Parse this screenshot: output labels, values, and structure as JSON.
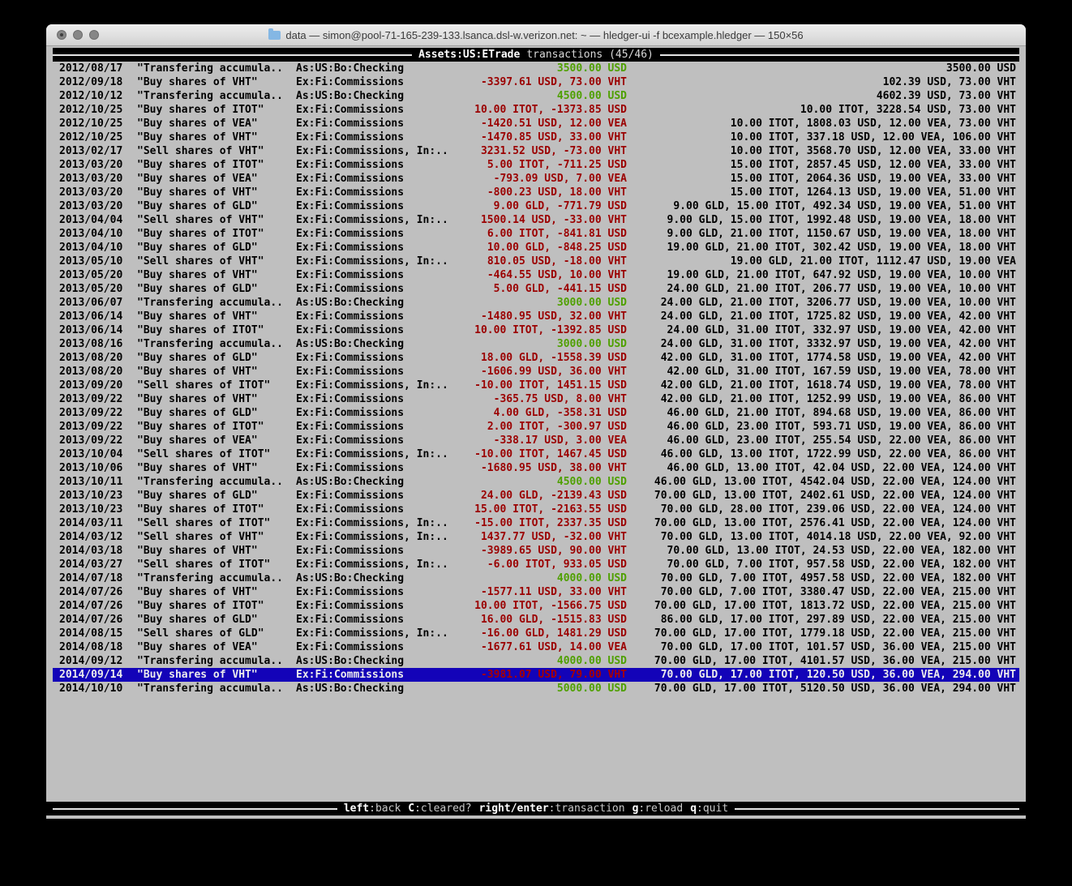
{
  "window": {
    "title": "data — simon@pool-71-165-239-133.lsanca.dsl-w.verizon.net: ~ — hledger-ui -f bcexample.hledger — 150×56"
  },
  "header": {
    "account": "Assets:US:ETrade",
    "suffix": "transactions (45/46)"
  },
  "footer": {
    "hints": [
      {
        "key": "left",
        "desc": ":back"
      },
      {
        "key": "C",
        "desc": ":cleared?"
      },
      {
        "key": "right/enter",
        "desc": ":transaction"
      },
      {
        "key": "g",
        "desc": ":reload"
      },
      {
        "key": "q",
        "desc": ":quit"
      }
    ]
  },
  "colors": {
    "terminal_bg": "#bfbfbf",
    "bar_bg": "#000000",
    "amount_negative": "#9b0000",
    "amount_positive": "#4fa000",
    "selection_bg": "#1303b8",
    "selection_fg": "#ececec"
  },
  "register": {
    "selected_index": 44,
    "rows": [
      {
        "date": "2012/08/17",
        "desc": "\"Transfering accumula..",
        "acct": "As:US:Bo:Checking",
        "amt": "3500.00 USD",
        "amt_color": "green",
        "bal": "3500.00 USD"
      },
      {
        "date": "2012/09/18",
        "desc": "\"Buy shares of VHT\"",
        "acct": "Ex:Fi:Commissions",
        "amt": "-3397.61 USD, 73.00 VHT",
        "amt_color": "red",
        "bal": "102.39 USD, 73.00 VHT"
      },
      {
        "date": "2012/10/12",
        "desc": "\"Transfering accumula..",
        "acct": "As:US:Bo:Checking",
        "amt": "4500.00 USD",
        "amt_color": "green",
        "bal": "4602.39 USD, 73.00 VHT"
      },
      {
        "date": "2012/10/25",
        "desc": "\"Buy shares of ITOT\"",
        "acct": "Ex:Fi:Commissions",
        "amt": "10.00 ITOT, -1373.85 USD",
        "amt_color": "red",
        "bal": "10.00 ITOT, 3228.54 USD, 73.00 VHT"
      },
      {
        "date": "2012/10/25",
        "desc": "\"Buy shares of VEA\"",
        "acct": "Ex:Fi:Commissions",
        "amt": "-1420.51 USD, 12.00 VEA",
        "amt_color": "red",
        "bal": "10.00 ITOT, 1808.03 USD, 12.00 VEA, 73.00 VHT"
      },
      {
        "date": "2012/10/25",
        "desc": "\"Buy shares of VHT\"",
        "acct": "Ex:Fi:Commissions",
        "amt": "-1470.85 USD, 33.00 VHT",
        "amt_color": "red",
        "bal": "10.00 ITOT, 337.18 USD, 12.00 VEA, 106.00 VHT"
      },
      {
        "date": "2013/02/17",
        "desc": "\"Sell shares of VHT\"",
        "acct": "Ex:Fi:Commissions, In:..",
        "amt": "3231.52 USD, -73.00 VHT",
        "amt_color": "red",
        "bal": "10.00 ITOT, 3568.70 USD, 12.00 VEA, 33.00 VHT"
      },
      {
        "date": "2013/03/20",
        "desc": "\"Buy shares of ITOT\"",
        "acct": "Ex:Fi:Commissions",
        "amt": "5.00 ITOT, -711.25 USD",
        "amt_color": "red",
        "bal": "15.00 ITOT, 2857.45 USD, 12.00 VEA, 33.00 VHT"
      },
      {
        "date": "2013/03/20",
        "desc": "\"Buy shares of VEA\"",
        "acct": "Ex:Fi:Commissions",
        "amt": "-793.09 USD, 7.00 VEA",
        "amt_color": "red",
        "bal": "15.00 ITOT, 2064.36 USD, 19.00 VEA, 33.00 VHT"
      },
      {
        "date": "2013/03/20",
        "desc": "\"Buy shares of VHT\"",
        "acct": "Ex:Fi:Commissions",
        "amt": "-800.23 USD, 18.00 VHT",
        "amt_color": "red",
        "bal": "15.00 ITOT, 1264.13 USD, 19.00 VEA, 51.00 VHT"
      },
      {
        "date": "2013/03/20",
        "desc": "\"Buy shares of GLD\"",
        "acct": "Ex:Fi:Commissions",
        "amt": "9.00 GLD, -771.79 USD",
        "amt_color": "red",
        "bal": "9.00 GLD, 15.00 ITOT, 492.34 USD, 19.00 VEA, 51.00 VHT"
      },
      {
        "date": "2013/04/04",
        "desc": "\"Sell shares of VHT\"",
        "acct": "Ex:Fi:Commissions, In:..",
        "amt": "1500.14 USD, -33.00 VHT",
        "amt_color": "red",
        "bal": "9.00 GLD, 15.00 ITOT, 1992.48 USD, 19.00 VEA, 18.00 VHT"
      },
      {
        "date": "2013/04/10",
        "desc": "\"Buy shares of ITOT\"",
        "acct": "Ex:Fi:Commissions",
        "amt": "6.00 ITOT, -841.81 USD",
        "amt_color": "red",
        "bal": "9.00 GLD, 21.00 ITOT, 1150.67 USD, 19.00 VEA, 18.00 VHT"
      },
      {
        "date": "2013/04/10",
        "desc": "\"Buy shares of GLD\"",
        "acct": "Ex:Fi:Commissions",
        "amt": "10.00 GLD, -848.25 USD",
        "amt_color": "red",
        "bal": "19.00 GLD, 21.00 ITOT, 302.42 USD, 19.00 VEA, 18.00 VHT"
      },
      {
        "date": "2013/05/10",
        "desc": "\"Sell shares of VHT\"",
        "acct": "Ex:Fi:Commissions, In:..",
        "amt": "810.05 USD, -18.00 VHT",
        "amt_color": "red",
        "bal": "19.00 GLD, 21.00 ITOT, 1112.47 USD, 19.00 VEA"
      },
      {
        "date": "2013/05/20",
        "desc": "\"Buy shares of VHT\"",
        "acct": "Ex:Fi:Commissions",
        "amt": "-464.55 USD, 10.00 VHT",
        "amt_color": "red",
        "bal": "19.00 GLD, 21.00 ITOT, 647.92 USD, 19.00 VEA, 10.00 VHT"
      },
      {
        "date": "2013/05/20",
        "desc": "\"Buy shares of GLD\"",
        "acct": "Ex:Fi:Commissions",
        "amt": "5.00 GLD, -441.15 USD",
        "amt_color": "red",
        "bal": "24.00 GLD, 21.00 ITOT, 206.77 USD, 19.00 VEA, 10.00 VHT"
      },
      {
        "date": "2013/06/07",
        "desc": "\"Transfering accumula..",
        "acct": "As:US:Bo:Checking",
        "amt": "3000.00 USD",
        "amt_color": "green",
        "bal": "24.00 GLD, 21.00 ITOT, 3206.77 USD, 19.00 VEA, 10.00 VHT"
      },
      {
        "date": "2013/06/14",
        "desc": "\"Buy shares of VHT\"",
        "acct": "Ex:Fi:Commissions",
        "amt": "-1480.95 USD, 32.00 VHT",
        "amt_color": "red",
        "bal": "24.00 GLD, 21.00 ITOT, 1725.82 USD, 19.00 VEA, 42.00 VHT"
      },
      {
        "date": "2013/06/14",
        "desc": "\"Buy shares of ITOT\"",
        "acct": "Ex:Fi:Commissions",
        "amt": "10.00 ITOT, -1392.85 USD",
        "amt_color": "red",
        "bal": "24.00 GLD, 31.00 ITOT, 332.97 USD, 19.00 VEA, 42.00 VHT"
      },
      {
        "date": "2013/08/16",
        "desc": "\"Transfering accumula..",
        "acct": "As:US:Bo:Checking",
        "amt": "3000.00 USD",
        "amt_color": "green",
        "bal": "24.00 GLD, 31.00 ITOT, 3332.97 USD, 19.00 VEA, 42.00 VHT"
      },
      {
        "date": "2013/08/20",
        "desc": "\"Buy shares of GLD\"",
        "acct": "Ex:Fi:Commissions",
        "amt": "18.00 GLD, -1558.39 USD",
        "amt_color": "red",
        "bal": "42.00 GLD, 31.00 ITOT, 1774.58 USD, 19.00 VEA, 42.00 VHT"
      },
      {
        "date": "2013/08/20",
        "desc": "\"Buy shares of VHT\"",
        "acct": "Ex:Fi:Commissions",
        "amt": "-1606.99 USD, 36.00 VHT",
        "amt_color": "red",
        "bal": "42.00 GLD, 31.00 ITOT, 167.59 USD, 19.00 VEA, 78.00 VHT"
      },
      {
        "date": "2013/09/20",
        "desc": "\"Sell shares of ITOT\"",
        "acct": "Ex:Fi:Commissions, In:..",
        "amt": "-10.00 ITOT, 1451.15 USD",
        "amt_color": "red",
        "bal": "42.00 GLD, 21.00 ITOT, 1618.74 USD, 19.00 VEA, 78.00 VHT"
      },
      {
        "date": "2013/09/22",
        "desc": "\"Buy shares of VHT\"",
        "acct": "Ex:Fi:Commissions",
        "amt": "-365.75 USD, 8.00 VHT",
        "amt_color": "red",
        "bal": "42.00 GLD, 21.00 ITOT, 1252.99 USD, 19.00 VEA, 86.00 VHT"
      },
      {
        "date": "2013/09/22",
        "desc": "\"Buy shares of GLD\"",
        "acct": "Ex:Fi:Commissions",
        "amt": "4.00 GLD, -358.31 USD",
        "amt_color": "red",
        "bal": "46.00 GLD, 21.00 ITOT, 894.68 USD, 19.00 VEA, 86.00 VHT"
      },
      {
        "date": "2013/09/22",
        "desc": "\"Buy shares of ITOT\"",
        "acct": "Ex:Fi:Commissions",
        "amt": "2.00 ITOT, -300.97 USD",
        "amt_color": "red",
        "bal": "46.00 GLD, 23.00 ITOT, 593.71 USD, 19.00 VEA, 86.00 VHT"
      },
      {
        "date": "2013/09/22",
        "desc": "\"Buy shares of VEA\"",
        "acct": "Ex:Fi:Commissions",
        "amt": "-338.17 USD, 3.00 VEA",
        "amt_color": "red",
        "bal": "46.00 GLD, 23.00 ITOT, 255.54 USD, 22.00 VEA, 86.00 VHT"
      },
      {
        "date": "2013/10/04",
        "desc": "\"Sell shares of ITOT\"",
        "acct": "Ex:Fi:Commissions, In:..",
        "amt": "-10.00 ITOT, 1467.45 USD",
        "amt_color": "red",
        "bal": "46.00 GLD, 13.00 ITOT, 1722.99 USD, 22.00 VEA, 86.00 VHT"
      },
      {
        "date": "2013/10/06",
        "desc": "\"Buy shares of VHT\"",
        "acct": "Ex:Fi:Commissions",
        "amt": "-1680.95 USD, 38.00 VHT",
        "amt_color": "red",
        "bal": "46.00 GLD, 13.00 ITOT, 42.04 USD, 22.00 VEA, 124.00 VHT"
      },
      {
        "date": "2013/10/11",
        "desc": "\"Transfering accumula..",
        "acct": "As:US:Bo:Checking",
        "amt": "4500.00 USD",
        "amt_color": "green",
        "bal": "46.00 GLD, 13.00 ITOT, 4542.04 USD, 22.00 VEA, 124.00 VHT"
      },
      {
        "date": "2013/10/23",
        "desc": "\"Buy shares of GLD\"",
        "acct": "Ex:Fi:Commissions",
        "amt": "24.00 GLD, -2139.43 USD",
        "amt_color": "red",
        "bal": "70.00 GLD, 13.00 ITOT, 2402.61 USD, 22.00 VEA, 124.00 VHT"
      },
      {
        "date": "2013/10/23",
        "desc": "\"Buy shares of ITOT\"",
        "acct": "Ex:Fi:Commissions",
        "amt": "15.00 ITOT, -2163.55 USD",
        "amt_color": "red",
        "bal": "70.00 GLD, 28.00 ITOT, 239.06 USD, 22.00 VEA, 124.00 VHT"
      },
      {
        "date": "2014/03/11",
        "desc": "\"Sell shares of ITOT\"",
        "acct": "Ex:Fi:Commissions, In:..",
        "amt": "-15.00 ITOT, 2337.35 USD",
        "amt_color": "red",
        "bal": "70.00 GLD, 13.00 ITOT, 2576.41 USD, 22.00 VEA, 124.00 VHT"
      },
      {
        "date": "2014/03/12",
        "desc": "\"Sell shares of VHT\"",
        "acct": "Ex:Fi:Commissions, In:..",
        "amt": "1437.77 USD, -32.00 VHT",
        "amt_color": "red",
        "bal": "70.00 GLD, 13.00 ITOT, 4014.18 USD, 22.00 VEA, 92.00 VHT"
      },
      {
        "date": "2014/03/18",
        "desc": "\"Buy shares of VHT\"",
        "acct": "Ex:Fi:Commissions",
        "amt": "-3989.65 USD, 90.00 VHT",
        "amt_color": "red",
        "bal": "70.00 GLD, 13.00 ITOT, 24.53 USD, 22.00 VEA, 182.00 VHT"
      },
      {
        "date": "2014/03/27",
        "desc": "\"Sell shares of ITOT\"",
        "acct": "Ex:Fi:Commissions, In:..",
        "amt": "-6.00 ITOT, 933.05 USD",
        "amt_color": "red",
        "bal": "70.00 GLD, 7.00 ITOT, 957.58 USD, 22.00 VEA, 182.00 VHT"
      },
      {
        "date": "2014/07/18",
        "desc": "\"Transfering accumula..",
        "acct": "As:US:Bo:Checking",
        "amt": "4000.00 USD",
        "amt_color": "green",
        "bal": "70.00 GLD, 7.00 ITOT, 4957.58 USD, 22.00 VEA, 182.00 VHT"
      },
      {
        "date": "2014/07/26",
        "desc": "\"Buy shares of VHT\"",
        "acct": "Ex:Fi:Commissions",
        "amt": "-1577.11 USD, 33.00 VHT",
        "amt_color": "red",
        "bal": "70.00 GLD, 7.00 ITOT, 3380.47 USD, 22.00 VEA, 215.00 VHT"
      },
      {
        "date": "2014/07/26",
        "desc": "\"Buy shares of ITOT\"",
        "acct": "Ex:Fi:Commissions",
        "amt": "10.00 ITOT, -1566.75 USD",
        "amt_color": "red",
        "bal": "70.00 GLD, 17.00 ITOT, 1813.72 USD, 22.00 VEA, 215.00 VHT"
      },
      {
        "date": "2014/07/26",
        "desc": "\"Buy shares of GLD\"",
        "acct": "Ex:Fi:Commissions",
        "amt": "16.00 GLD, -1515.83 USD",
        "amt_color": "red",
        "bal": "86.00 GLD, 17.00 ITOT, 297.89 USD, 22.00 VEA, 215.00 VHT"
      },
      {
        "date": "2014/08/15",
        "desc": "\"Sell shares of GLD\"",
        "acct": "Ex:Fi:Commissions, In:..",
        "amt": "-16.00 GLD, 1481.29 USD",
        "amt_color": "red",
        "bal": "70.00 GLD, 17.00 ITOT, 1779.18 USD, 22.00 VEA, 215.00 VHT"
      },
      {
        "date": "2014/08/18",
        "desc": "\"Buy shares of VEA\"",
        "acct": "Ex:Fi:Commissions",
        "amt": "-1677.61 USD, 14.00 VEA",
        "amt_color": "red",
        "bal": "70.00 GLD, 17.00 ITOT, 101.57 USD, 36.00 VEA, 215.00 VHT"
      },
      {
        "date": "2014/09/12",
        "desc": "\"Transfering accumula..",
        "acct": "As:US:Bo:Checking",
        "amt": "4000.00 USD",
        "amt_color": "green",
        "bal": "70.00 GLD, 17.00 ITOT, 4101.57 USD, 36.00 VEA, 215.00 VHT"
      },
      {
        "date": "2014/09/14",
        "desc": "\"Buy shares of VHT\"",
        "acct": "Ex:Fi:Commissions",
        "amt": "-3981.07 USD, 79.00 VHT",
        "amt_color": "red",
        "bal": "70.00 GLD, 17.00 ITOT, 120.50 USD, 36.00 VEA, 294.00 VHT"
      },
      {
        "date": "2014/10/10",
        "desc": "\"Transfering accumula..",
        "acct": "As:US:Bo:Checking",
        "amt": "5000.00 USD",
        "amt_color": "green",
        "bal": "70.00 GLD, 17.00 ITOT, 5120.50 USD, 36.00 VEA, 294.00 VHT"
      }
    ]
  }
}
